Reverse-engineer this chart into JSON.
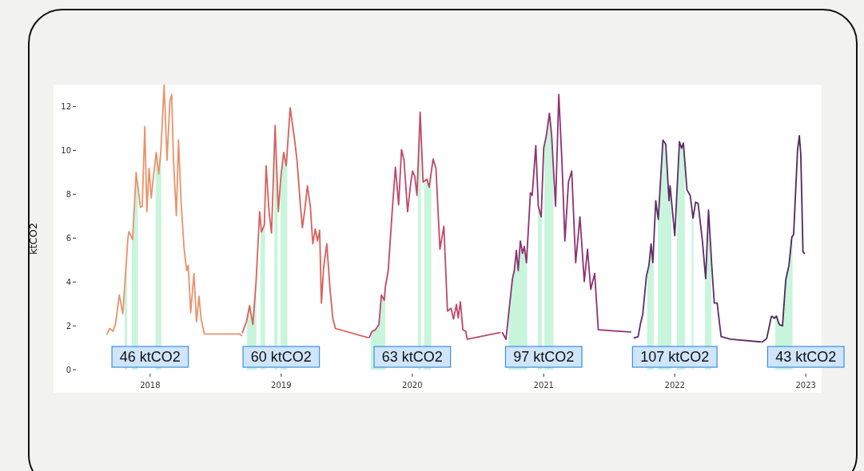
{
  "chart_data": {
    "type": "line",
    "ylabel": "ktCO2",
    "xlim": [
      "2017-04-07",
      "2023-02-14"
    ],
    "ylim": [
      -1.05,
      13
    ],
    "xticks": [
      "2018",
      "2019",
      "2020",
      "2021",
      "2022",
      "2023"
    ],
    "yticks": [
      0,
      2,
      4,
      6,
      8,
      10,
      12
    ],
    "series": [
      {
        "color": "#e8936a",
        "x": [
          "2017-09-03",
          "2017-09-10",
          "2017-09-20",
          "2017-09-27",
          "2017-10-07",
          "2017-10-17",
          "2017-10-31",
          "2017-11-03",
          "2017-11-13",
          "2017-11-23",
          "2017-11-29",
          "2017-12-05",
          "2017-12-10",
          "2017-12-17",
          "2017-12-23",
          "2017-12-29",
          "2018-01-04",
          "2018-01-11",
          "2018-01-18",
          "2018-01-25",
          "2018-01-31",
          "2018-02-09",
          "2018-02-17",
          "2018-02-25",
          "2018-03-02",
          "2018-03-07",
          "2018-03-15",
          "2018-03-21",
          "2018-03-28",
          "2018-04-05",
          "2018-04-10",
          "2018-04-13",
          "2018-04-17",
          "2018-04-24",
          "2018-05-03",
          "2018-05-10",
          "2018-05-17",
          "2018-05-23",
          "2018-06-01",
          "2018-09-07",
          "2018-09-13"
        ],
        "values": [
          1.63,
          1.88,
          1.75,
          2.12,
          3.41,
          2.55,
          5.99,
          6.3,
          5.93,
          9.0,
          8.2,
          7.4,
          7.46,
          11.08,
          7.21,
          9.18,
          7.83,
          8.93,
          9.91,
          8.93,
          10.04,
          12.98,
          9.55,
          12.25,
          12.55,
          9.55,
          7.03,
          10.47,
          7.71,
          5.62,
          4.88,
          4.52,
          4.76,
          2.61,
          4.39,
          2.18,
          3.35,
          2.31,
          1.63,
          1.63,
          1.55
        ]
      },
      {
        "color": "#d8605c",
        "x": [
          "2018-09-15",
          "2018-09-26",
          "2018-10-05",
          "2018-10-14",
          "2018-10-23",
          "2018-11-02",
          "2018-11-07",
          "2018-11-15",
          "2018-11-20",
          "2018-11-28",
          "2018-12-05",
          "2018-12-15",
          "2018-12-24",
          "2018-12-31",
          "2019-01-08",
          "2019-01-15",
          "2019-01-26",
          "2019-02-07",
          "2019-02-14",
          "2019-02-23",
          "2019-03-01",
          "2019-03-08",
          "2019-03-15",
          "2019-03-23",
          "2019-03-30",
          "2019-04-06",
          "2019-04-12",
          "2019-04-18",
          "2019-04-23",
          "2019-04-29",
          "2019-05-08",
          "2019-05-17",
          "2019-05-25",
          "2019-06-01",
          "2019-08-30"
        ],
        "values": [
          1.69,
          2.18,
          2.92,
          2.06,
          4.02,
          7.21,
          6.29,
          6.6,
          9.3,
          7.21,
          6.23,
          11.14,
          7.21,
          8.81,
          9.91,
          9.3,
          11.94,
          10.53,
          9.55,
          7.58,
          6.48,
          7.34,
          8.38,
          7.46,
          5.74,
          6.42,
          5.87,
          6.36,
          3.04,
          4.64,
          5.74,
          3.66,
          2.31,
          1.88,
          1.47
        ]
      },
      {
        "color": "#c04868",
        "x": [
          "2019-09-03",
          "2019-09-11",
          "2019-09-20",
          "2019-09-30",
          "2019-10-07",
          "2019-10-15",
          "2019-10-18",
          "2019-10-26",
          "2019-11-06",
          "2019-11-15",
          "2019-11-24",
          "2019-12-02",
          "2019-12-09",
          "2019-12-19",
          "2019-12-28",
          "2020-01-02",
          "2020-01-08",
          "2020-01-14",
          "2020-01-23",
          "2020-01-31",
          "2020-02-11",
          "2020-02-17",
          "2020-02-28",
          "2020-03-07",
          "2020-03-18",
          "2020-03-29",
          "2020-04-08",
          "2020-04-18",
          "2020-04-25",
          "2020-05-03",
          "2020-05-08",
          "2020-05-14",
          "2020-05-21",
          "2020-05-29",
          "2020-06-02",
          "2020-09-01"
        ],
        "values": [
          1.47,
          1.75,
          1.82,
          2.06,
          3.41,
          3.17,
          3.78,
          4.52,
          7.21,
          9.24,
          7.52,
          10.04,
          9.55,
          7.21,
          8.56,
          9.06,
          8.81,
          7.95,
          11.75,
          8.56,
          8.69,
          8.32,
          9.61,
          9.18,
          5.5,
          6.54,
          2.67,
          2.8,
          2.31,
          2.98,
          2.37,
          3.1,
          1.82,
          1.75,
          1.39,
          1.69
        ]
      },
      {
        "color": "#8e3270",
        "x": [
          "2020-09-08",
          "2020-09-18",
          "2020-09-27",
          "2020-10-06",
          "2020-10-11",
          "2020-10-17",
          "2020-10-22",
          "2020-10-28",
          "2020-11-03",
          "2020-11-08",
          "2020-11-14",
          "2020-11-25",
          "2020-11-30",
          "2020-12-10",
          "2020-12-17",
          "2020-12-25",
          "2021-01-01",
          "2021-01-08",
          "2021-01-17",
          "2021-01-23",
          "2021-02-03",
          "2021-02-12",
          "2021-02-21",
          "2021-03-01",
          "2021-03-11",
          "2021-03-20",
          "2021-03-31",
          "2021-04-12",
          "2021-04-24",
          "2021-05-03",
          "2021-05-12",
          "2021-05-23",
          "2021-06-02",
          "2021-08-31"
        ],
        "values": [
          1.69,
          1.39,
          2.8,
          4.15,
          4.52,
          5.44,
          4.52,
          5.87,
          5.31,
          5.62,
          4.88,
          8.07,
          7.95,
          10.22,
          7.46,
          6.97,
          10.1,
          10.65,
          11.69,
          10.71,
          7.46,
          12.55,
          9.42,
          5.87,
          8.56,
          9.06,
          4.88,
          6.97,
          4.02,
          5.5,
          3.66,
          4.39,
          1.82,
          1.72
        ]
      },
      {
        "color": "#5e2c66",
        "x": [
          "2021-09-10",
          "2021-09-21",
          "2021-09-27",
          "2021-10-04",
          "2021-10-14",
          "2021-10-21",
          "2021-10-27",
          "2021-11-01",
          "2021-11-09",
          "2021-11-16",
          "2021-11-29",
          "2021-12-07",
          "2021-12-16",
          "2021-12-19",
          "2022-01-01",
          "2022-01-14",
          "2022-01-20",
          "2022-01-25",
          "2022-02-04",
          "2022-02-13",
          "2022-02-21",
          "2022-02-28",
          "2022-03-07",
          "2022-03-19",
          "2022-03-28",
          "2022-04-05",
          "2022-04-14",
          "2022-04-21",
          "2022-04-29",
          "2022-05-10",
          "2022-06-05",
          "2022-08-28"
        ],
        "values": [
          1.45,
          1.51,
          2.06,
          2.55,
          4.27,
          4.76,
          5.74,
          4.88,
          7.71,
          6.85,
          10.47,
          10.28,
          7.71,
          8.38,
          6.11,
          10.4,
          10.1,
          10.34,
          8.2,
          7.95,
          6.91,
          7.64,
          7.58,
          5.87,
          4.15,
          7.28,
          4.76,
          3.04,
          3.04,
          1.51,
          1.39,
          1.27
        ]
      },
      {
        "color": "#4a2a58",
        "x": [
          "2022-09-01",
          "2022-09-14",
          "2022-09-27",
          "2022-09-30",
          "2022-10-05",
          "2022-10-11",
          "2022-10-19",
          "2022-10-28",
          "2022-11-06",
          "2022-11-15",
          "2022-11-23",
          "2022-11-28",
          "2022-12-09",
          "2022-12-14",
          "2022-12-18",
          "2022-12-24",
          "2022-12-28"
        ],
        "values": [
          1.26,
          1.42,
          2.43,
          2.43,
          2.34,
          2.45,
          2.06,
          2.0,
          4.09,
          4.76,
          6.05,
          6.17,
          10.04,
          10.67,
          9.79,
          5.37,
          5.31
        ]
      }
    ],
    "bands": [
      {
        "axis": "x",
        "from": "2017-10-22",
        "to": "2017-10-29",
        "color": "#c8f5dc"
      },
      {
        "axis": "x",
        "from": "2017-11-11",
        "to": "2017-11-28",
        "color": "#c8f5dc"
      },
      {
        "axis": "x",
        "from": "2018-01-16",
        "to": "2018-02-01",
        "color": "#c8f5dc"
      },
      {
        "axis": "x",
        "from": "2018-09-28",
        "to": "2018-10-24",
        "color": "#c8f5dc"
      },
      {
        "axis": "x",
        "from": "2018-11-04",
        "to": "2018-11-17",
        "color": "#c8f5dc"
      },
      {
        "axis": "x",
        "from": "2018-12-13",
        "to": "2018-12-22",
        "color": "#c8f5dc"
      },
      {
        "axis": "x",
        "from": "2018-12-30",
        "to": "2019-01-18",
        "color": "#c8f5dc"
      },
      {
        "axis": "x",
        "from": "2019-09-07",
        "to": "2019-10-18",
        "color": "#c8f5dc"
      },
      {
        "axis": "x",
        "from": "2020-01-17",
        "to": "2020-01-25",
        "color": "#c8f5dc"
      },
      {
        "axis": "x",
        "from": "2020-02-03",
        "to": "2020-02-23",
        "color": "#c8f5dc"
      },
      {
        "axis": "x",
        "from": "2020-09-25",
        "to": "2020-11-16",
        "color": "#c8f5dc"
      },
      {
        "axis": "x",
        "from": "2020-12-16",
        "to": "2020-12-27",
        "color": "#c8f5dc"
      },
      {
        "axis": "x",
        "from": "2021-01-03",
        "to": "2021-01-28",
        "color": "#c8f5dc"
      },
      {
        "axis": "x",
        "from": "2021-10-16",
        "to": "2021-11-03",
        "color": "#c8f5dc"
      },
      {
        "axis": "x",
        "from": "2021-11-15",
        "to": "2021-12-23",
        "color": "#c8f5dc"
      },
      {
        "axis": "x",
        "from": "2022-01-07",
        "to": "2022-01-29",
        "color": "#c8f5dc"
      },
      {
        "axis": "x",
        "from": "2022-02-17",
        "to": "2022-02-22",
        "color": "#c8f5dc"
      },
      {
        "axis": "x",
        "from": "2022-03-26",
        "to": "2022-04-13",
        "color": "#c8f5dc"
      },
      {
        "axis": "x",
        "from": "2022-10-08",
        "to": "2022-11-25",
        "color": "#c8f5dc"
      }
    ],
    "annotations": [
      "46 ktCO2",
      "60 ktCO2",
      "63 ktCO2",
      "97 ktCO2",
      "107 ktCO2",
      "43 ktCO2"
    ]
  }
}
